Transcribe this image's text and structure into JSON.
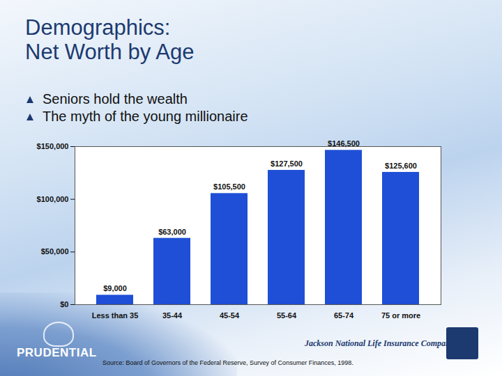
{
  "chart_data": {
    "type": "bar",
    "title": "Demographics: Net Worth by Age",
    "bullets": [
      "Seniors hold the wealth",
      "The myth of the young millionaire"
    ],
    "categories": [
      "Less than 35",
      "35-44",
      "45-54",
      "55-64",
      "65-74",
      "75 or more"
    ],
    "values": [
      9000,
      63000,
      105500,
      127500,
      146500,
      125600
    ],
    "value_labels": [
      "$9,000",
      "$63,000",
      "$105,500",
      "$127,500",
      "$146,500",
      "$125,600"
    ],
    "color": "#1f4fd6",
    "ylim": [
      0,
      150000
    ],
    "yticks": [
      {
        "value": 0,
        "label": "$0"
      },
      {
        "value": 50000,
        "label": "$50,000"
      },
      {
        "value": 100000,
        "label": "$100,000"
      },
      {
        "value": 150000,
        "label": "$150,000"
      }
    ],
    "grid": false,
    "data_labels": true,
    "source": "Source:  Board of Governors of the Federal Reserve, Survey of Consumer Finances, 1998.",
    "logos": [
      "PRUDENTIAL",
      "Jackson National Life Insurance Company®"
    ]
  }
}
